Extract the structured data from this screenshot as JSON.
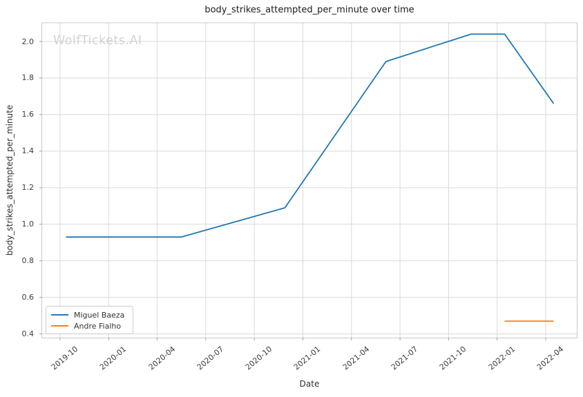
{
  "watermark": "WolfTickets.AI",
  "colors": {
    "series_blue": "#1f77b4",
    "series_orange": "#ff7f0e",
    "grid": "#d9d9d9",
    "spine": "#c8c8c8",
    "tick_mark": "#8a8a8a",
    "tick_text": "#3b3b3b",
    "title_text": "#1a1a1a"
  },
  "chart_data": {
    "type": "line",
    "title": "body_strikes_attempted_per_minute over time",
    "xlabel": "Date",
    "ylabel": "body_strikes_attempted_per_minute",
    "grid": true,
    "legend_position": "lower left",
    "x_tick_labels": [
      "2019-10",
      "2020-01",
      "2020-04",
      "2020-07",
      "2020-10",
      "2021-01",
      "2021-04",
      "2021-07",
      "2021-10",
      "2022-01",
      "2022-04"
    ],
    "y_tick_labels": [
      "0.4",
      "0.6",
      "0.8",
      "1.0",
      "1.2",
      "1.4",
      "1.6",
      "1.8",
      "2.0"
    ],
    "ylim": [
      0.38,
      2.1
    ],
    "xlim": [
      "2019-08-28",
      "2022-05-29"
    ],
    "series": [
      {
        "name": "Miguel Baeza",
        "color": "#1f77b4",
        "points": [
          [
            "2019-10-12",
            0.93
          ],
          [
            "2020-05-16",
            0.93
          ],
          [
            "2020-11-28",
            1.09
          ],
          [
            "2021-06-05",
            1.89
          ],
          [
            "2021-11-13",
            2.04
          ],
          [
            "2022-01-15",
            2.04
          ],
          [
            "2022-04-16",
            1.66
          ]
        ]
      },
      {
        "name": "Andre Fialho",
        "color": "#ff7f0e",
        "points": [
          [
            "2022-01-15",
            0.47
          ],
          [
            "2022-04-16",
            0.47
          ]
        ]
      }
    ]
  }
}
